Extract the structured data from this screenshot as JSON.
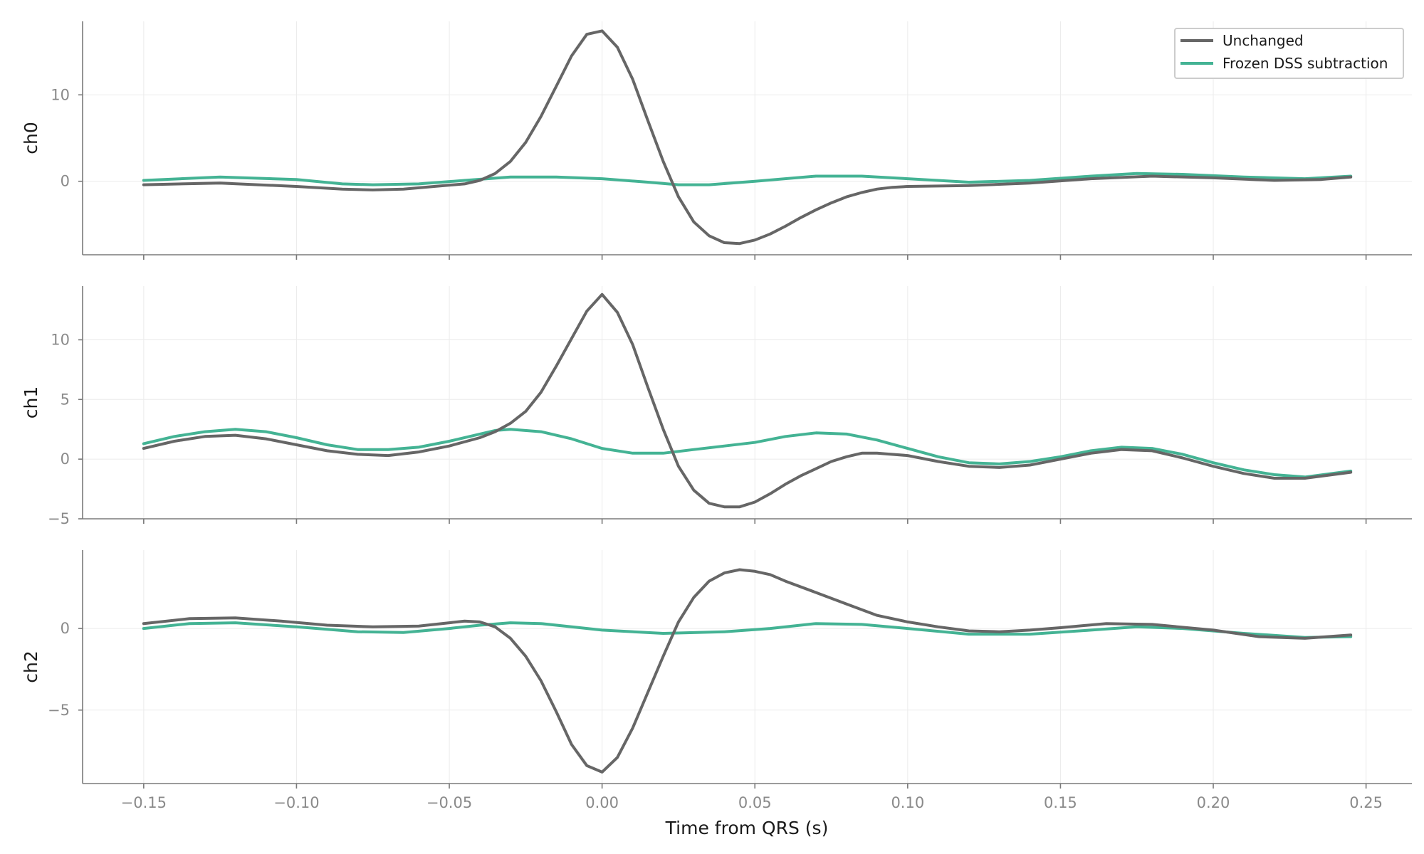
{
  "chart_data": {
    "type": "line",
    "xlabel": "Time from QRS (s)",
    "xlim": [
      -0.17,
      0.265
    ],
    "x_ticks": [
      -0.15,
      -0.1,
      -0.05,
      0.0,
      0.05,
      0.1,
      0.15,
      0.2,
      0.25
    ],
    "x_tick_labels": [
      "−0.15",
      "−0.10",
      "−0.05",
      "0.00",
      "0.05",
      "0.10",
      "0.15",
      "0.20",
      "0.25"
    ],
    "grid": true,
    "legend": {
      "location": "top-right",
      "entries": [
        "Unchanged",
        "Frozen DSS subtraction"
      ]
    },
    "colors": {
      "Unchanged": "#666666",
      "Frozen DSS subtraction": "#44b394"
    },
    "panels": [
      {
        "ylabel": "ch0",
        "ylim": [
          -8.5,
          18.5
        ],
        "y_ticks": [
          0,
          10
        ],
        "y_tick_labels": [
          "0",
          "10"
        ],
        "series": [
          {
            "name": "Unchanged",
            "points": [
              [
                -0.15,
                -0.4
              ],
              [
                -0.125,
                -0.2
              ],
              [
                -0.1,
                -0.6
              ],
              [
                -0.085,
                -0.9
              ],
              [
                -0.075,
                -1.0
              ],
              [
                -0.065,
                -0.9
              ],
              [
                -0.055,
                -0.6
              ],
              [
                -0.045,
                -0.3
              ],
              [
                -0.04,
                0.1
              ],
              [
                -0.035,
                0.9
              ],
              [
                -0.03,
                2.3
              ],
              [
                -0.025,
                4.5
              ],
              [
                -0.02,
                7.5
              ],
              [
                -0.015,
                11.0
              ],
              [
                -0.01,
                14.5
              ],
              [
                -0.005,
                17.0
              ],
              [
                0.0,
                17.4
              ],
              [
                0.005,
                15.5
              ],
              [
                0.01,
                11.8
              ],
              [
                0.015,
                7.0
              ],
              [
                0.02,
                2.3
              ],
              [
                0.025,
                -1.8
              ],
              [
                0.03,
                -4.7
              ],
              [
                0.035,
                -6.3
              ],
              [
                0.04,
                -7.1
              ],
              [
                0.045,
                -7.2
              ],
              [
                0.05,
                -6.8
              ],
              [
                0.055,
                -6.1
              ],
              [
                0.06,
                -5.2
              ],
              [
                0.065,
                -4.2
              ],
              [
                0.07,
                -3.3
              ],
              [
                0.075,
                -2.5
              ],
              [
                0.08,
                -1.8
              ],
              [
                0.085,
                -1.3
              ],
              [
                0.09,
                -0.9
              ],
              [
                0.095,
                -0.7
              ],
              [
                0.1,
                -0.6
              ],
              [
                0.12,
                -0.5
              ],
              [
                0.14,
                -0.2
              ],
              [
                0.16,
                0.3
              ],
              [
                0.18,
                0.6
              ],
              [
                0.2,
                0.4
              ],
              [
                0.22,
                0.1
              ],
              [
                0.235,
                0.2
              ],
              [
                0.245,
                0.5
              ]
            ]
          },
          {
            "name": "Frozen DSS subtraction",
            "points": [
              [
                -0.15,
                0.1
              ],
              [
                -0.125,
                0.5
              ],
              [
                -0.1,
                0.2
              ],
              [
                -0.085,
                -0.3
              ],
              [
                -0.075,
                -0.4
              ],
              [
                -0.06,
                -0.3
              ],
              [
                -0.045,
                0.1
              ],
              [
                -0.03,
                0.5
              ],
              [
                -0.015,
                0.5
              ],
              [
                0.0,
                0.3
              ],
              [
                0.015,
                -0.1
              ],
              [
                0.025,
                -0.4
              ],
              [
                0.035,
                -0.4
              ],
              [
                0.05,
                0.0
              ],
              [
                0.07,
                0.6
              ],
              [
                0.085,
                0.6
              ],
              [
                0.1,
                0.3
              ],
              [
                0.12,
                -0.1
              ],
              [
                0.14,
                0.1
              ],
              [
                0.16,
                0.6
              ],
              [
                0.175,
                0.9
              ],
              [
                0.19,
                0.8
              ],
              [
                0.21,
                0.5
              ],
              [
                0.23,
                0.3
              ],
              [
                0.245,
                0.6
              ]
            ]
          }
        ]
      },
      {
        "ylabel": "ch1",
        "ylim": [
          -5.0,
          14.5
        ],
        "y_ticks": [
          -5,
          0,
          5,
          10
        ],
        "y_tick_labels": [
          "−5",
          "0",
          "5",
          "10"
        ],
        "series": [
          {
            "name": "Unchanged",
            "points": [
              [
                -0.15,
                0.9
              ],
              [
                -0.14,
                1.5
              ],
              [
                -0.13,
                1.9
              ],
              [
                -0.12,
                2.0
              ],
              [
                -0.11,
                1.7
              ],
              [
                -0.1,
                1.2
              ],
              [
                -0.09,
                0.7
              ],
              [
                -0.08,
                0.4
              ],
              [
                -0.07,
                0.3
              ],
              [
                -0.06,
                0.6
              ],
              [
                -0.05,
                1.1
              ],
              [
                -0.04,
                1.8
              ],
              [
                -0.035,
                2.3
              ],
              [
                -0.03,
                3.0
              ],
              [
                -0.025,
                4.0
              ],
              [
                -0.02,
                5.6
              ],
              [
                -0.015,
                7.8
              ],
              [
                -0.01,
                10.1
              ],
              [
                -0.005,
                12.4
              ],
              [
                0.0,
                13.8
              ],
              [
                0.005,
                12.3
              ],
              [
                0.01,
                9.6
              ],
              [
                0.015,
                6.0
              ],
              [
                0.02,
                2.5
              ],
              [
                0.025,
                -0.6
              ],
              [
                0.03,
                -2.6
              ],
              [
                0.035,
                -3.7
              ],
              [
                0.04,
                -4.0
              ],
              [
                0.045,
                -4.0
              ],
              [
                0.05,
                -3.6
              ],
              [
                0.055,
                -2.9
              ],
              [
                0.06,
                -2.1
              ],
              [
                0.065,
                -1.4
              ],
              [
                0.07,
                -0.8
              ],
              [
                0.075,
                -0.2
              ],
              [
                0.08,
                0.2
              ],
              [
                0.085,
                0.5
              ],
              [
                0.09,
                0.5
              ],
              [
                0.1,
                0.3
              ],
              [
                0.11,
                -0.2
              ],
              [
                0.12,
                -0.6
              ],
              [
                0.13,
                -0.7
              ],
              [
                0.14,
                -0.5
              ],
              [
                0.15,
                0.0
              ],
              [
                0.16,
                0.5
              ],
              [
                0.17,
                0.8
              ],
              [
                0.18,
                0.7
              ],
              [
                0.19,
                0.1
              ],
              [
                0.2,
                -0.6
              ],
              [
                0.21,
                -1.2
              ],
              [
                0.22,
                -1.6
              ],
              [
                0.23,
                -1.6
              ],
              [
                0.245,
                -1.1
              ]
            ]
          },
          {
            "name": "Frozen DSS subtraction",
            "points": [
              [
                -0.15,
                1.3
              ],
              [
                -0.14,
                1.9
              ],
              [
                -0.13,
                2.3
              ],
              [
                -0.12,
                2.5
              ],
              [
                -0.11,
                2.3
              ],
              [
                -0.1,
                1.8
              ],
              [
                -0.09,
                1.2
              ],
              [
                -0.08,
                0.8
              ],
              [
                -0.07,
                0.8
              ],
              [
                -0.06,
                1.0
              ],
              [
                -0.05,
                1.5
              ],
              [
                -0.04,
                2.1
              ],
              [
                -0.035,
                2.4
              ],
              [
                -0.03,
                2.5
              ],
              [
                -0.02,
                2.3
              ],
              [
                -0.01,
                1.7
              ],
              [
                0.0,
                0.9
              ],
              [
                0.01,
                0.5
              ],
              [
                0.02,
                0.5
              ],
              [
                0.03,
                0.8
              ],
              [
                0.04,
                1.1
              ],
              [
                0.05,
                1.4
              ],
              [
                0.06,
                1.9
              ],
              [
                0.07,
                2.2
              ],
              [
                0.08,
                2.1
              ],
              [
                0.09,
                1.6
              ],
              [
                0.1,
                0.9
              ],
              [
                0.11,
                0.2
              ],
              [
                0.12,
                -0.3
              ],
              [
                0.13,
                -0.4
              ],
              [
                0.14,
                -0.2
              ],
              [
                0.15,
                0.2
              ],
              [
                0.16,
                0.7
              ],
              [
                0.17,
                1.0
              ],
              [
                0.18,
                0.9
              ],
              [
                0.19,
                0.4
              ],
              [
                0.2,
                -0.3
              ],
              [
                0.21,
                -0.9
              ],
              [
                0.22,
                -1.3
              ],
              [
                0.23,
                -1.5
              ],
              [
                0.245,
                -1.0
              ]
            ]
          }
        ]
      },
      {
        "ylabel": "ch2",
        "ylim": [
          -9.5,
          4.8
        ],
        "y_ticks": [
          -5,
          0
        ],
        "y_tick_labels": [
          "−5",
          "0"
        ],
        "series": [
          {
            "name": "Unchanged",
            "points": [
              [
                -0.15,
                0.3
              ],
              [
                -0.135,
                0.6
              ],
              [
                -0.12,
                0.65
              ],
              [
                -0.105,
                0.45
              ],
              [
                -0.09,
                0.2
              ],
              [
                -0.075,
                0.1
              ],
              [
                -0.06,
                0.15
              ],
              [
                -0.05,
                0.35
              ],
              [
                -0.045,
                0.45
              ],
              [
                -0.04,
                0.4
              ],
              [
                -0.035,
                0.1
              ],
              [
                -0.03,
                -0.6
              ],
              [
                -0.025,
                -1.7
              ],
              [
                -0.02,
                -3.2
              ],
              [
                -0.015,
                -5.1
              ],
              [
                -0.01,
                -7.1
              ],
              [
                -0.005,
                -8.4
              ],
              [
                0.0,
                -8.8
              ],
              [
                0.005,
                -7.9
              ],
              [
                0.01,
                -6.1
              ],
              [
                0.015,
                -3.9
              ],
              [
                0.02,
                -1.7
              ],
              [
                0.025,
                0.4
              ],
              [
                0.03,
                1.9
              ],
              [
                0.035,
                2.9
              ],
              [
                0.04,
                3.4
              ],
              [
                0.045,
                3.6
              ],
              [
                0.05,
                3.5
              ],
              [
                0.055,
                3.3
              ],
              [
                0.06,
                2.9
              ],
              [
                0.07,
                2.2
              ],
              [
                0.08,
                1.5
              ],
              [
                0.09,
                0.8
              ],
              [
                0.1,
                0.4
              ],
              [
                0.11,
                0.1
              ],
              [
                0.12,
                -0.15
              ],
              [
                0.13,
                -0.2
              ],
              [
                0.14,
                -0.1
              ],
              [
                0.15,
                0.05
              ],
              [
                0.165,
                0.3
              ],
              [
                0.18,
                0.25
              ],
              [
                0.2,
                -0.1
              ],
              [
                0.215,
                -0.5
              ],
              [
                0.23,
                -0.6
              ],
              [
                0.245,
                -0.4
              ]
            ]
          },
          {
            "name": "Frozen DSS subtraction",
            "points": [
              [
                -0.15,
                0.0
              ],
              [
                -0.135,
                0.3
              ],
              [
                -0.12,
                0.35
              ],
              [
                -0.1,
                0.1
              ],
              [
                -0.08,
                -0.2
              ],
              [
                -0.065,
                -0.25
              ],
              [
                -0.05,
                0.0
              ],
              [
                -0.04,
                0.2
              ],
              [
                -0.03,
                0.35
              ],
              [
                -0.02,
                0.3
              ],
              [
                -0.01,
                0.1
              ],
              [
                0.0,
                -0.1
              ],
              [
                0.02,
                -0.3
              ],
              [
                0.04,
                -0.2
              ],
              [
                0.055,
                0.0
              ],
              [
                0.07,
                0.3
              ],
              [
                0.085,
                0.25
              ],
              [
                0.1,
                0.0
              ],
              [
                0.12,
                -0.35
              ],
              [
                0.14,
                -0.35
              ],
              [
                0.16,
                -0.1
              ],
              [
                0.175,
                0.1
              ],
              [
                0.19,
                0.0
              ],
              [
                0.21,
                -0.3
              ],
              [
                0.23,
                -0.55
              ],
              [
                0.245,
                -0.5
              ]
            ]
          }
        ]
      }
    ]
  }
}
